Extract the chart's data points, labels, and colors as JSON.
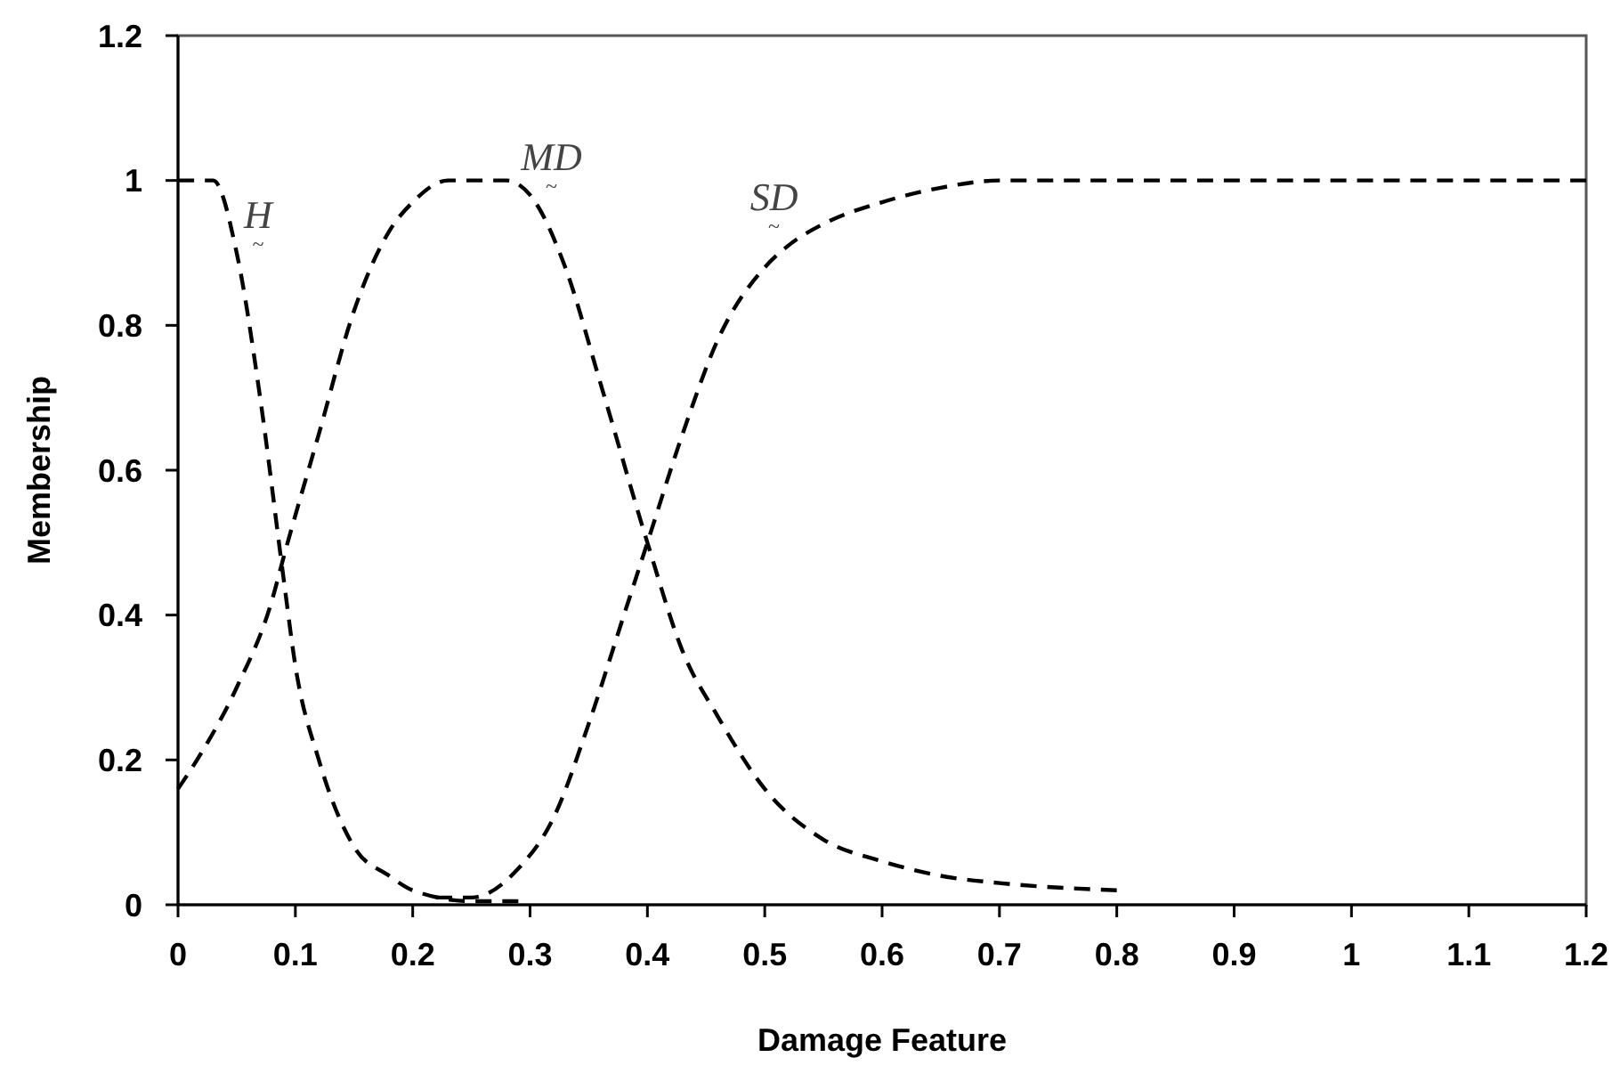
{
  "chart_data": {
    "type": "line",
    "xlabel": "Damage Feature",
    "ylabel": "Membership",
    "xlim": [
      0,
      1.2
    ],
    "xticks": [
      0,
      0.1,
      0.2,
      0.3,
      0.4,
      0.5,
      0.6,
      0.7,
      0.8,
      0.9,
      1,
      1.1,
      1.2
    ],
    "ylim": [
      0,
      1.2
    ],
    "yticks": [
      0,
      0.2,
      0.4,
      0.6,
      0.8,
      1,
      1.2
    ],
    "grid": false,
    "marker": "none",
    "line_style": "dashed",
    "series": [
      {
        "name": "H$_{~}$",
        "color": "#000000",
        "x": [
          0,
          0.03,
          0.05,
          0.07,
          0.09,
          0.1,
          0.12,
          0.15,
          0.18,
          0.2,
          0.25,
          0.29
        ],
        "values": [
          1,
          1,
          0.9,
          0.7,
          0.45,
          0.33,
          0.2,
          0.08,
          0.04,
          0.02,
          0.005,
          0.005
        ]
      },
      {
        "name": "MD$_{~}$",
        "color": "#000000",
        "x": [
          0,
          0.02,
          0.05,
          0.08,
          0.09,
          0.12,
          0.15,
          0.18,
          0.2,
          0.23,
          0.28,
          0.3,
          0.33,
          0.36,
          0.4,
          0.43,
          0.46,
          0.5,
          0.55,
          0.6,
          0.65,
          0.7,
          0.8
        ],
        "values": [
          0.16,
          0.21,
          0.3,
          0.42,
          0.48,
          0.65,
          0.82,
          0.93,
          0.97,
          1,
          1,
          0.98,
          0.88,
          0.72,
          0.5,
          0.35,
          0.26,
          0.16,
          0.09,
          0.06,
          0.04,
          0.03,
          0.02
        ]
      },
      {
        "name": "SD$_{~}$",
        "color": "#000000",
        "x": [
          0.22,
          0.25,
          0.29,
          0.32,
          0.35,
          0.38,
          0.4,
          0.43,
          0.46,
          0.5,
          0.52,
          0.55,
          0.6,
          0.65,
          0.7,
          1.2
        ],
        "values": [
          0.01,
          0.01,
          0.05,
          0.12,
          0.25,
          0.4,
          0.5,
          0.65,
          0.78,
          0.88,
          0.91,
          0.94,
          0.97,
          0.99,
          1,
          1
        ]
      }
    ]
  }
}
